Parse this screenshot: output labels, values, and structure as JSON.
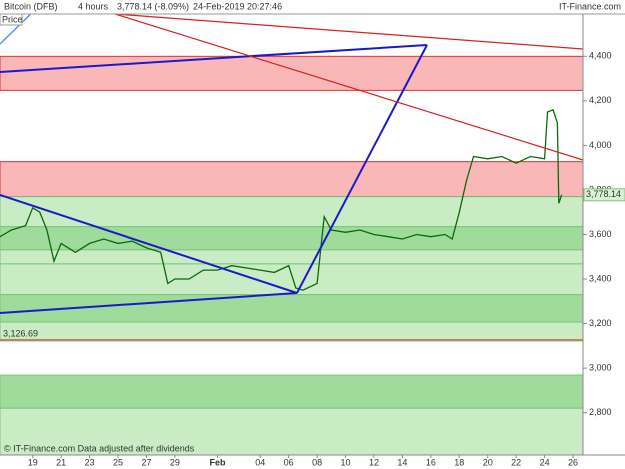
{
  "header": {
    "instrument": "Bitcoin (DFB)",
    "interval": "4 hours",
    "quote": "3,778.14 (-8.09%)",
    "timestamp": "24-Feb-2019 20:27:46",
    "brand": "IT-Finance.com"
  },
  "footer": "© IT-Finance.com  Data adjusted after dividends",
  "chart_data": {
    "type": "line",
    "panel_label": "Price",
    "xlim": [
      16.7,
      57.7
    ],
    "ylim": [
      2610,
      4590
    ],
    "xticks": [
      19,
      21,
      23,
      25,
      27,
      29,
      {
        "value": 32,
        "label": "Feb"
      },
      {
        "value": 35,
        "label": "04"
      },
      {
        "value": 37,
        "label": "06"
      },
      {
        "value": 39,
        "label": "08"
      },
      {
        "value": 41,
        "label": "10"
      },
      {
        "value": 43,
        "label": "12"
      },
      {
        "value": 45,
        "label": "14"
      },
      {
        "value": 47,
        "label": "16"
      },
      {
        "value": 49,
        "label": "18"
      },
      {
        "value": 51,
        "label": "20"
      },
      {
        "value": 53,
        "label": "22"
      },
      {
        "value": 55,
        "label": "24"
      },
      {
        "value": 57,
        "label": "26"
      }
    ],
    "yticks": [
      {
        "value": 2800,
        "label": "2,800"
      },
      {
        "value": 3000,
        "label": "3,000"
      },
      {
        "value": 3200,
        "label": "3,200"
      },
      {
        "value": 3400,
        "label": "3,400"
      },
      {
        "value": 3600,
        "label": "3,600"
      },
      {
        "value": 3800,
        "label": "3,800"
      },
      {
        "value": 4000,
        "label": "4,000"
      },
      {
        "value": 4200,
        "label": "4,200"
      },
      {
        "value": 4400,
        "label": "4,400"
      }
    ],
    "zones": [
      {
        "from": 4247,
        "to": 4400,
        "color": "#f9b7b7",
        "edge": "#e03030"
      },
      {
        "from": 3770,
        "to": 3927,
        "color": "#f9b7b7",
        "edge": "#e03030"
      },
      {
        "from": 3635,
        "to": 3770,
        "color": "#c9ecc5",
        "edge": "#7cc47a"
      },
      {
        "from": 3531,
        "to": 3635,
        "color": "#9fdb9a",
        "edge": "#7cc47a"
      },
      {
        "from": 3468,
        "to": 3531,
        "color": "#c9ecc5",
        "edge": "#7cc47a"
      },
      {
        "from": 3330,
        "to": 3468,
        "color": "#c9ecc5",
        "edge": "#7cc47a"
      },
      {
        "from": 3207,
        "to": 3330,
        "color": "#9fdb9a",
        "edge": "#7cc47a"
      },
      {
        "from": 3122,
        "to": 3207,
        "color": "#c9ecc5",
        "edge": "#7cc47a"
      },
      {
        "from": 2820,
        "to": 2969,
        "color": "#9fdb9a",
        "edge": "#7cc47a"
      },
      {
        "from": 2610,
        "to": 2820,
        "color": "#c9ecc5",
        "edge": "#7cc47a"
      }
    ],
    "levels": [
      {
        "value": 3126.69,
        "label": "3,126.69",
        "color": "#e03030"
      }
    ],
    "last_price": {
      "value": 3778.14,
      "label": "3,778.14"
    },
    "series": [
      {
        "name": "Bitcoin (DFB)",
        "color": "#0a6a0a",
        "x": [
          16.7,
          17.5,
          18.5,
          19,
          19.5,
          20,
          20.5,
          21,
          22,
          23,
          24,
          25,
          26,
          27,
          28,
          28.5,
          29,
          30,
          31,
          32,
          33,
          34,
          35,
          36,
          37,
          37.5,
          38,
          39,
          39.5,
          40,
          41,
          42,
          43,
          44,
          45,
          46,
          47,
          48,
          48.5,
          49,
          49.5,
          50,
          51,
          52,
          53,
          54,
          55,
          55.2,
          55.6,
          55.9,
          56,
          56.2
        ],
        "values": [
          3590,
          3620,
          3640,
          3720,
          3700,
          3620,
          3480,
          3560,
          3520,
          3560,
          3580,
          3560,
          3570,
          3540,
          3520,
          3380,
          3400,
          3400,
          3440,
          3440,
          3460,
          3450,
          3440,
          3430,
          3460,
          3360,
          3350,
          3380,
          3680,
          3620,
          3610,
          3620,
          3600,
          3590,
          3580,
          3600,
          3590,
          3600,
          3580,
          3700,
          3840,
          3950,
          3940,
          3950,
          3920,
          3950,
          3940,
          4150,
          4160,
          4100,
          3740,
          3778.14
        ]
      }
    ]
  }
}
